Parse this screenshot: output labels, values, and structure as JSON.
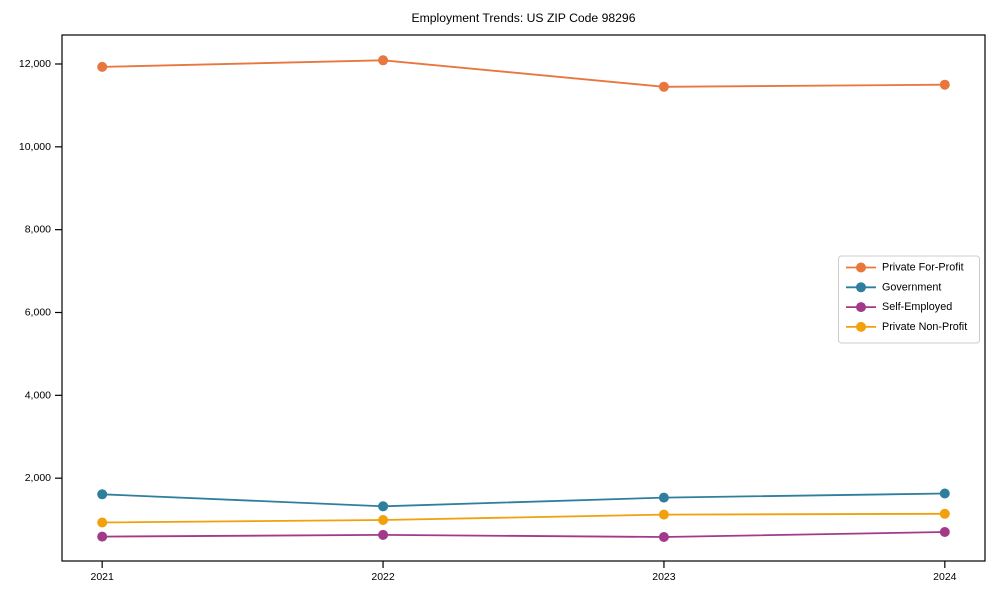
{
  "figure": {
    "background_color": "#ffffff",
    "axis_color": "#000000",
    "legend_border_color": "#cccccc"
  },
  "chart_data": {
    "type": "line",
    "title": "Employment Trends: US ZIP Code 98296",
    "xlabel": "",
    "ylabel": "",
    "x": [
      2021,
      2022,
      2023,
      2024
    ],
    "x_tick_labels": [
      "2021",
      "2022",
      "2023",
      "2024"
    ],
    "y_ticks": [
      2000,
      4000,
      6000,
      8000,
      10000,
      12000
    ],
    "y_tick_labels": [
      "2,000",
      "4,000",
      "6,000",
      "8,000",
      "10,000",
      "12,000"
    ],
    "xlim": [
      2020.857,
      2024.143
    ],
    "ylim": [
      0,
      12700
    ],
    "grid": false,
    "marker": "circle",
    "legend_position": "center right",
    "series": [
      {
        "name": "Private For-Profit",
        "color": "#e8763d",
        "values": [
          11930,
          12090,
          11450,
          11500
        ]
      },
      {
        "name": "Government",
        "color": "#2e7f9e",
        "values": [
          1610,
          1320,
          1530,
          1630
        ]
      },
      {
        "name": "Self-Employed",
        "color": "#a23a89",
        "values": [
          590,
          630,
          580,
          700
        ]
      },
      {
        "name": "Private Non-Profit",
        "color": "#f0a10c",
        "values": [
          930,
          990,
          1120,
          1140
        ]
      }
    ]
  }
}
